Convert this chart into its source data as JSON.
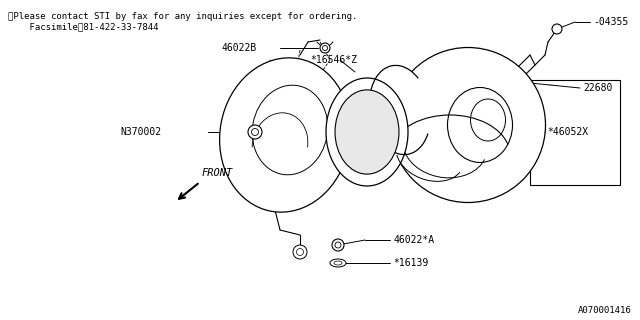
{
  "bg_color": "#ffffff",
  "line_color": "#000000",
  "text_color": "#000000",
  "header_line1": "※Please contact STI by fax for any inquiries except for ordering.",
  "header_line2": "    Facsimile：81-422-33-7844",
  "footer_id": "A070001416",
  "figsize": [
    6.4,
    3.2
  ],
  "dpi": 100
}
